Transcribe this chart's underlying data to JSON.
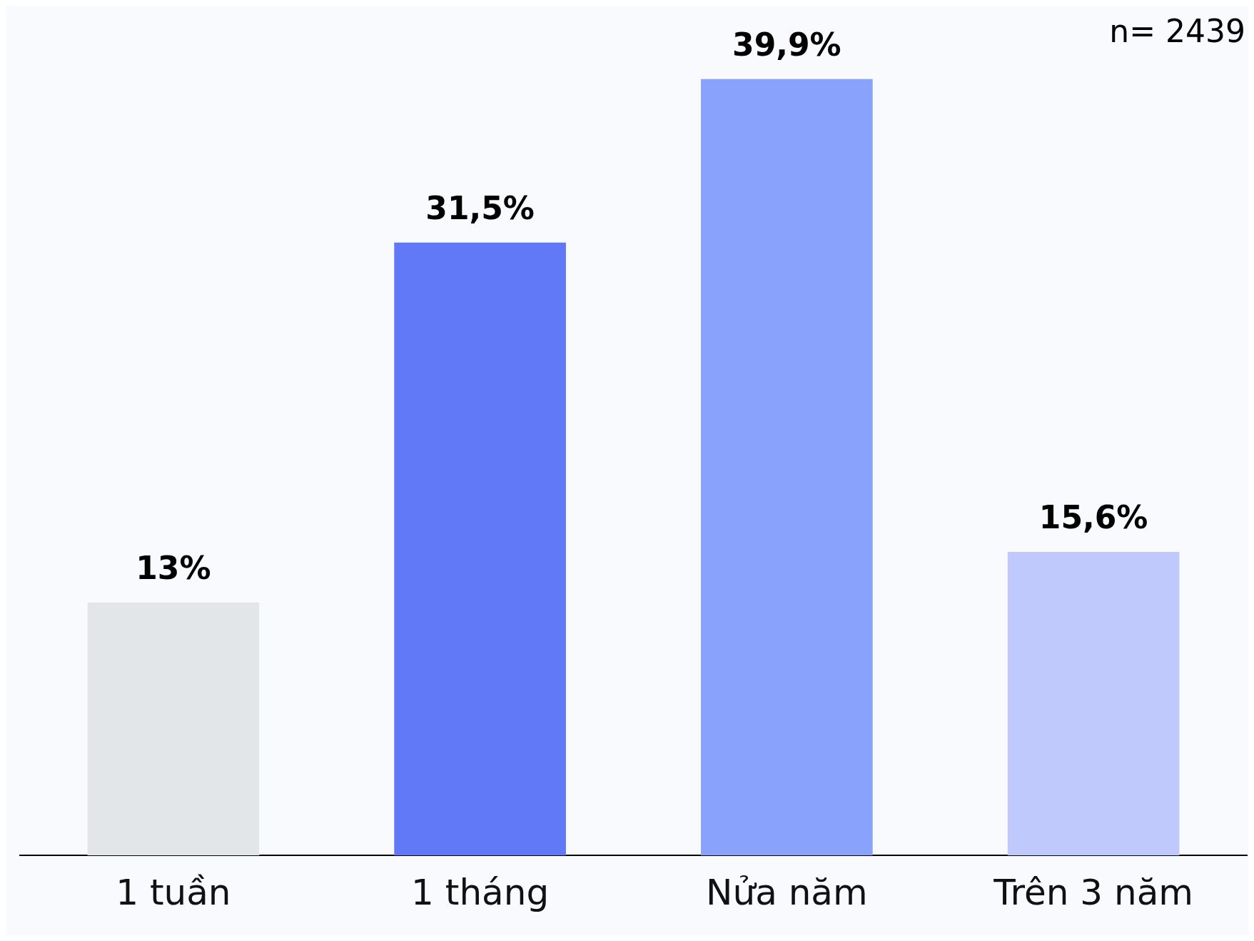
{
  "chart_data": {
    "type": "bar",
    "categories": [
      "1 tuần",
      "1 tháng",
      "Nửa năm",
      "Trên 3 năm"
    ],
    "values": [
      13,
      31.5,
      39.9,
      15.6
    ],
    "colors": [
      "#e3e6e9",
      "#6279f7",
      "#89a3fc",
      "#c0c9fb"
    ],
    "value_labels": [
      "13%",
      "31,5%",
      "39,9%",
      "15,6%"
    ],
    "annotations": [
      "n= 2439"
    ],
    "grid": false,
    "legend": false
  }
}
